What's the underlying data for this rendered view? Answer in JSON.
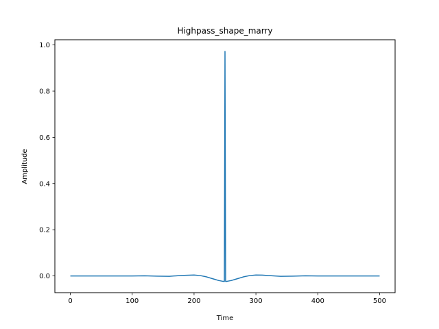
{
  "chart_data": {
    "type": "line",
    "title": "Highpass_shape_marry",
    "xlabel": "Time",
    "ylabel": "Amplitude",
    "xlim": [
      -25,
      525
    ],
    "ylim": [
      -0.0725,
      1.0225
    ],
    "xticks": [
      0,
      100,
      200,
      300,
      400,
      500
    ],
    "yticks": [
      0.0,
      0.2,
      0.4,
      0.6,
      0.8,
      1.0
    ],
    "xtick_labels": [
      "0",
      "100",
      "200",
      "300",
      "400",
      "500"
    ],
    "ytick_labels": [
      "0.0",
      "0.2",
      "0.4",
      "0.6",
      "0.8",
      "1.0"
    ],
    "grid": false,
    "series": [
      {
        "color": "#1f77b4",
        "x": [
          0,
          50,
          100,
          120,
          140,
          160,
          180,
          200,
          210,
          220,
          230,
          240,
          246,
          249,
          250,
          251,
          252,
          254,
          260,
          270,
          280,
          290,
          300,
          310,
          320,
          340,
          360,
          380,
          400,
          450,
          500
        ],
        "y": [
          0.0,
          0.0,
          0.0,
          0.0005,
          -0.001,
          -0.0015,
          0.002,
          0.004,
          0.0015,
          -0.004,
          -0.012,
          -0.02,
          -0.023,
          -0.024,
          0.972,
          -0.024,
          -0.024,
          -0.023,
          -0.02,
          -0.012,
          -0.004,
          0.0015,
          0.004,
          0.0035,
          0.0015,
          -0.0015,
          -0.001,
          0.0005,
          0.0,
          0.0,
          0.0
        ]
      }
    ]
  }
}
